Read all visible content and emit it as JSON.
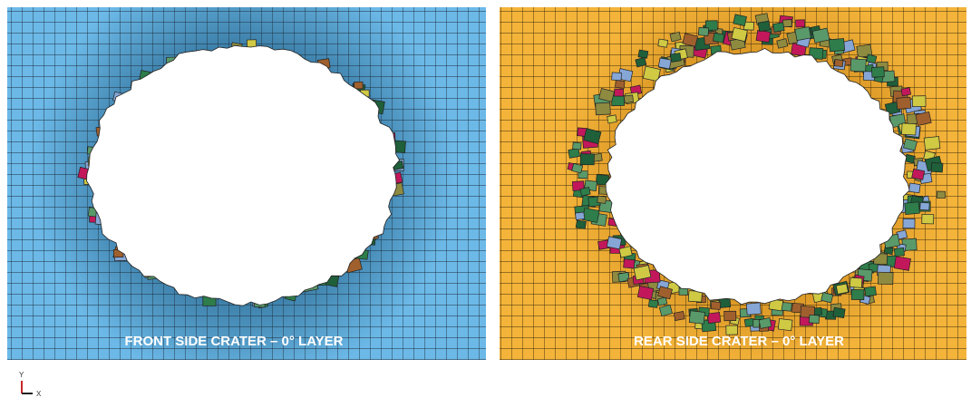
{
  "panels": [
    {
      "caption": "FRONT SIDE CRATER – 0° LAYER"
    },
    {
      "caption": "REAR SIDE CRATER – 0° LAYER"
    }
  ],
  "axes": {
    "y": "Y",
    "x": "X"
  }
}
